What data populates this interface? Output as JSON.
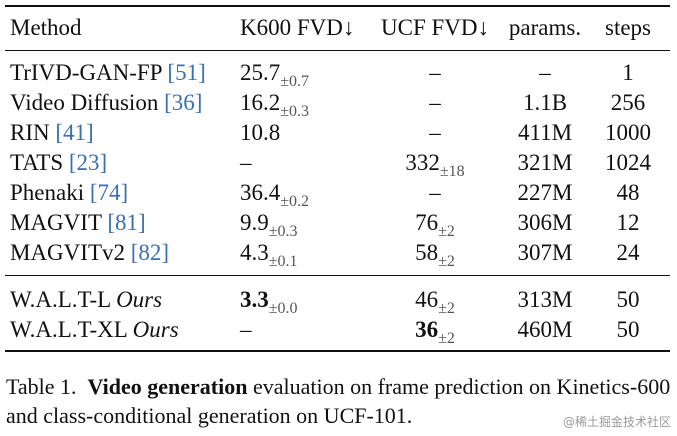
{
  "table": {
    "headers": {
      "method": "Method",
      "k600": "K600 FVD↓",
      "ucf": "UCF FVD↓",
      "params": "params.",
      "steps": "steps"
    },
    "rows": [
      {
        "method": "TrIVD-GAN-FP ",
        "cite": "[51]",
        "k600": "25.7",
        "k600_pm": "±0.7",
        "ucf": "–",
        "ucf_pm": "",
        "params": "–",
        "steps": "1"
      },
      {
        "method": "Video Diffusion ",
        "cite": "[36]",
        "k600": "16.2",
        "k600_pm": "±0.3",
        "ucf": "–",
        "ucf_pm": "",
        "params": "1.1B",
        "steps": "256"
      },
      {
        "method": "RIN ",
        "cite": "[41]",
        "k600": "10.8",
        "k600_pm": "",
        "ucf": "–",
        "ucf_pm": "",
        "params": "411M",
        "steps": "1000"
      },
      {
        "method": "TATS ",
        "cite": "[23]",
        "k600": "–",
        "k600_pm": "",
        "ucf": "332",
        "ucf_pm": "±18",
        "params": "321M",
        "steps": "1024"
      },
      {
        "method": "Phenaki ",
        "cite": "[74]",
        "k600": "36.4",
        "k600_pm": "±0.2",
        "ucf": "–",
        "ucf_pm": "",
        "params": "227M",
        "steps": "48"
      },
      {
        "method": "MAGVIT ",
        "cite": "[81]",
        "k600": "9.9",
        "k600_pm": "±0.3",
        "ucf": "76",
        "ucf_pm": "±2",
        "params": "306M",
        "steps": "12"
      },
      {
        "method": "MAGVITv2 ",
        "cite": "[82]",
        "k600": "4.3",
        "k600_pm": "±0.1",
        "ucf": "58",
        "ucf_pm": "±2",
        "params": "307M",
        "steps": "24"
      }
    ],
    "ours_rows": [
      {
        "method": "W.A.L.T-L ",
        "ours": "Ours",
        "k600": "3.3",
        "k600_pm": "±0.0",
        "ucf": "46",
        "ucf_pm": "±2",
        "params": "313M",
        "steps": "50"
      },
      {
        "method": "W.A.L.T-XL ",
        "ours": "Ours",
        "k600": "–",
        "k600_pm": "",
        "ucf": "36",
        "ucf_pm": "±2",
        "params": "460M",
        "steps": "50"
      }
    ]
  },
  "caption": {
    "label": "Table 1.",
    "bold": "Video generation",
    "text": " evaluation on frame prediction on Kinetics-600 and class-conditional generation on UCF-101."
  },
  "watermark": "@稀土掘金技术社区"
}
